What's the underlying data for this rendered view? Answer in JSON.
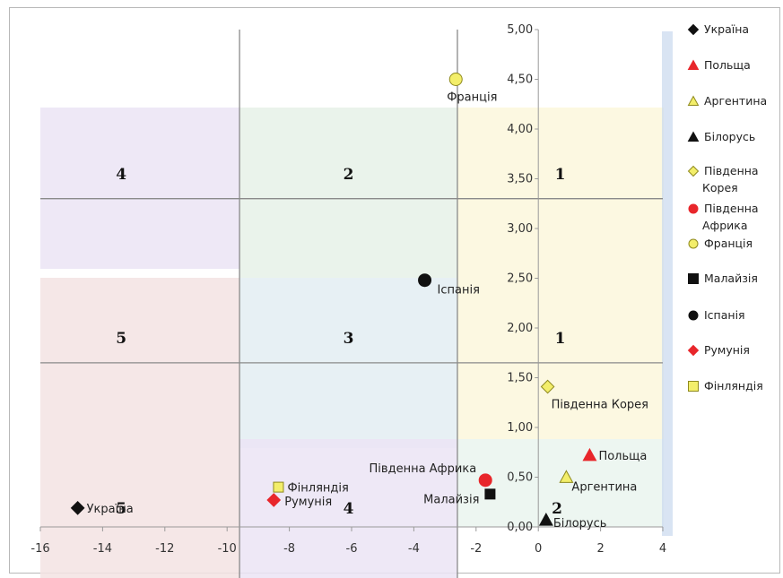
{
  "chart_data": {
    "type": "scatter",
    "xlim": [
      -16,
      4
    ],
    "ylim": [
      0,
      5
    ],
    "x_ticks": [
      "-16",
      "-14",
      "-12",
      "-10",
      "-8",
      "-6",
      "-4",
      "-2",
      "0",
      "2",
      "4"
    ],
    "y_ticks": [
      "0,00",
      "0,50",
      "1,00",
      "1,50",
      "2,00",
      "2,50",
      "3,00",
      "3,50",
      "4,00",
      "4,50",
      "5,00"
    ],
    "grid": false,
    "legend_position": "right",
    "divider_x": [
      -9.6,
      -2.6
    ],
    "divider_y": [
      1.65,
      3.3
    ],
    "series": [
      {
        "name": "Україна",
        "x": -14.8,
        "y": 0.19,
        "marker": "diamond",
        "color": "#111111",
        "label": "Україна"
      },
      {
        "name": "Польща",
        "x": 1.65,
        "y": 0.72,
        "marker": "triangle",
        "color": "#e8262b",
        "label": "Польща"
      },
      {
        "name": "Аргентина",
        "x": 0.9,
        "y": 0.5,
        "marker": "triangle",
        "color": "#f3ee6a",
        "label": "Аргентина"
      },
      {
        "name": "Білорусь",
        "x": 0.25,
        "y": 0.07,
        "marker": "triangle",
        "color": "#111111",
        "label": "Білорусь"
      },
      {
        "name": "Південна Корея",
        "x": 0.3,
        "y": 1.41,
        "marker": "diamond",
        "color": "#f3ee6a",
        "label": "Південна Корея"
      },
      {
        "name": "Південна Африка",
        "x": -1.7,
        "y": 0.47,
        "marker": "circle",
        "color": "#e8262b",
        "label": "Південна Африка"
      },
      {
        "name": "Франція",
        "x": -2.65,
        "y": 4.5,
        "marker": "circle",
        "color": "#f3ee6a",
        "label": "Франція"
      },
      {
        "name": "Малайзія",
        "x": -1.55,
        "y": 0.33,
        "marker": "square",
        "color": "#111111",
        "label": "Малайзія"
      },
      {
        "name": "Іспанія",
        "x": -3.65,
        "y": 2.48,
        "marker": "circle",
        "color": "#111111",
        "label": "Іспанія"
      },
      {
        "name": "Румунія",
        "x": -8.5,
        "y": 0.27,
        "marker": "diamond",
        "color": "#e8262b",
        "label": "Румунія"
      },
      {
        "name": "Фінляндія",
        "x": -8.35,
        "y": 0.4,
        "marker": "square",
        "color": "#f3ee6a",
        "label": "Фінляндія"
      }
    ],
    "zone_labels": [
      {
        "text": "4",
        "x": -13.4,
        "y": 3.55
      },
      {
        "text": "2",
        "x": -6.1,
        "y": 3.55
      },
      {
        "text": "1",
        "x": 0.7,
        "y": 3.55
      },
      {
        "text": "5",
        "x": -13.4,
        "y": 1.9
      },
      {
        "text": "3",
        "x": -6.1,
        "y": 1.9
      },
      {
        "text": "1",
        "x": 0.7,
        "y": 1.9
      },
      {
        "text": "5",
        "x": -13.4,
        "y": 0.19
      },
      {
        "text": "4",
        "x": -6.1,
        "y": 0.19
      },
      {
        "text": "2",
        "x": 0.6,
        "y": 0.19
      }
    ],
    "legend": [
      {
        "label": "Україна",
        "marker": "diamond",
        "color": "#111111"
      },
      {
        "label": "Польща",
        "marker": "triangle",
        "color": "#e8262b"
      },
      {
        "label": "Аргентина",
        "marker": "triangle",
        "color": "#f3ee6a"
      },
      {
        "label": "Білорусь",
        "marker": "triangle",
        "color": "#111111"
      },
      {
        "label": "Південна Корея",
        "marker": "diamond",
        "color": "#f3ee6a"
      },
      {
        "label": "Південна Африка",
        "marker": "circle",
        "color": "#e8262b"
      },
      {
        "label": "Франція",
        "marker": "circle",
        "color": "#f3ee6a"
      },
      {
        "label": "Малайзія",
        "marker": "square",
        "color": "#111111"
      },
      {
        "label": "Іспанія",
        "marker": "circle",
        "color": "#111111"
      },
      {
        "label": "Румунія",
        "marker": "diamond",
        "color": "#e8262b"
      },
      {
        "label": "Фінляндія",
        "marker": "square",
        "color": "#f3ee6a"
      }
    ],
    "colors": {
      "zone_purple": "#ebe4f5",
      "zone_green": "#e6f1e8",
      "zone_yellow": "#fbf7dc",
      "zone_pink": "#f3e3e3",
      "zone_blue": "#e6eef6",
      "zone_mint": "#eaf5ee"
    }
  }
}
